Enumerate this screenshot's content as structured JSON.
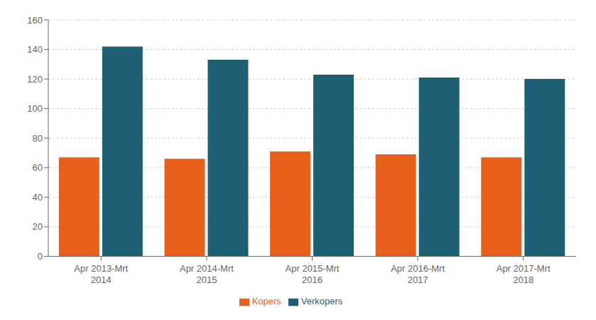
{
  "chart_data": {
    "type": "bar",
    "categories": [
      "Apr 2013-Mrt\n2014",
      "Apr 2014-Mrt\n2015",
      "Apr 2015-Mrt\n2016",
      "Apr 2016-Mrt\n2017",
      "Apr 2017-Mrt\n2018"
    ],
    "series": [
      {
        "name": "Kopers",
        "color": "#E8601C",
        "values": [
          67,
          66,
          71,
          69,
          67
        ]
      },
      {
        "name": "Verkopers",
        "color": "#1F5F74",
        "values": [
          142,
          133,
          123,
          121,
          120
        ]
      }
    ],
    "ylim": [
      0,
      160
    ],
    "yticks": [
      0,
      20,
      40,
      60,
      80,
      100,
      120,
      140,
      160
    ],
    "grid": true,
    "legend": "bottom"
  }
}
